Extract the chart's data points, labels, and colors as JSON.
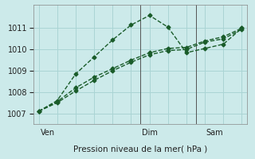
{
  "bg_color": "#cceaea",
  "grid_color": "#aad4d4",
  "line_color": "#1a5c2a",
  "xlabel": "Pression niveau de la mer( hPa )",
  "ylim": [
    1006.5,
    1012.1
  ],
  "yticks": [
    1007,
    1008,
    1009,
    1010,
    1011
  ],
  "series1_x": [
    0,
    1,
    2,
    3,
    4,
    5,
    6,
    7,
    8,
    9,
    10,
    11
  ],
  "series1_y": [
    1007.1,
    1007.6,
    1008.85,
    1009.65,
    1010.45,
    1011.15,
    1011.6,
    1011.05,
    1009.85,
    1010.05,
    1010.25,
    1011.0
  ],
  "series2_x": [
    0,
    1,
    2,
    3,
    4,
    5,
    6,
    7,
    8,
    9,
    10,
    11
  ],
  "series2_y": [
    1007.1,
    1007.55,
    1008.2,
    1008.7,
    1009.1,
    1009.5,
    1009.85,
    1010.05,
    1010.1,
    1010.4,
    1010.6,
    1011.0
  ],
  "series3_x": [
    0,
    1,
    2,
    3,
    4,
    5,
    6,
    7,
    8,
    9,
    10,
    11
  ],
  "series3_y": [
    1007.1,
    1007.5,
    1008.05,
    1008.55,
    1009.0,
    1009.4,
    1009.75,
    1009.95,
    1010.0,
    1010.35,
    1010.5,
    1010.95
  ],
  "xtick_positions": [
    0.5,
    6,
    9.5
  ],
  "xtick_labels": [
    "Ven",
    "Dim",
    "Sam"
  ],
  "vlines_x": [
    5.5,
    8.5
  ],
  "xlim": [
    -0.3,
    11.3
  ]
}
